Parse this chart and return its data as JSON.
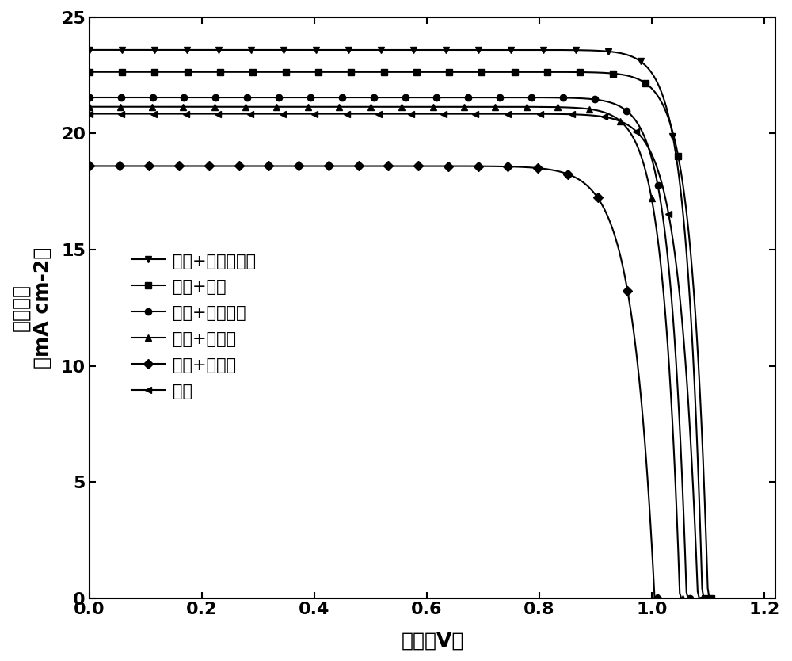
{
  "title": "",
  "xlabel": "电压（V）",
  "ylabel_line1": "电流密度",
  "ylabel_line2": "（mA cm-2）",
  "xlim": [
    0.0,
    1.22
  ],
  "ylim": [
    0.0,
    25
  ],
  "xticks": [
    0.0,
    0.2,
    0.4,
    0.6,
    0.8,
    1.0,
    1.2
  ],
  "yticks": [
    0,
    5,
    10,
    15,
    20,
    25
  ],
  "params": [
    {
      "jsc": 23.6,
      "voc": 1.09,
      "n_id": 1.1,
      "marker": "v",
      "label": "乙腈+乙酸异丙酯"
    },
    {
      "jsc": 22.65,
      "voc": 1.1,
      "n_id": 1.12,
      "marker": "s",
      "label": "乙腈+乙醇"
    },
    {
      "jsc": 21.55,
      "voc": 1.062,
      "n_id": 1.14,
      "marker": "o",
      "label": "乙腈+四氢呋喃"
    },
    {
      "jsc": 21.15,
      "voc": 1.05,
      "n_id": 1.16,
      "marker": "^",
      "label": "乙腈+异丙醇"
    },
    {
      "jsc": 18.6,
      "voc": 1.005,
      "n_id": 1.5,
      "marker": "D",
      "label": "乙腈+环己烷"
    },
    {
      "jsc": 20.85,
      "voc": 1.082,
      "n_id": 1.28,
      "marker": "<",
      "label": "乙腈"
    }
  ],
  "background_color": "#ffffff",
  "line_color": "#000000",
  "markersize": 6,
  "linewidth": 1.5,
  "n_marks": 20,
  "legend_fontsize": 15,
  "tick_fontsize": 16,
  "label_fontsize": 18
}
